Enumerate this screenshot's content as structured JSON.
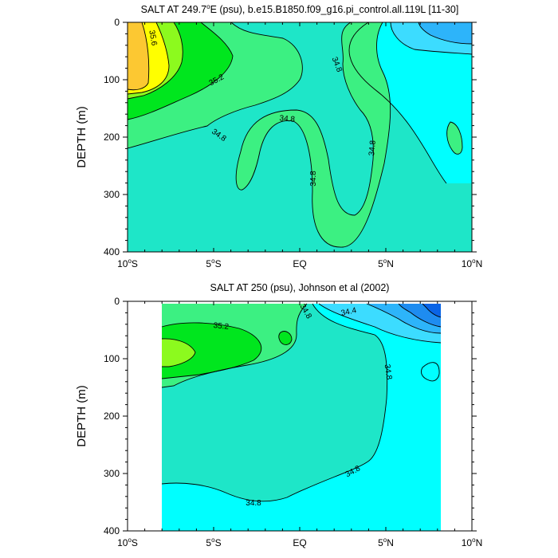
{
  "colors": {
    "c_lt_34_4": "#0a64e6",
    "c_34_4_34_5": "#1e8cf0",
    "c_34_5_34_6": "#2db4fa",
    "c_34_6_34_7": "#3cdcff",
    "c_34_7_34_8": "#00ffff",
    "c_34_8_35_0": "#1ee6c8",
    "c_35_0_35_2": "#3cf082",
    "c_35_2_35_4": "#00e61e",
    "c_35_4_35_6": "#8cfa1e",
    "c_gt_35_6": "#ffff00",
    "c_peak": "#fcc832",
    "line": "#000000",
    "frame": "#000000",
    "background": "#ffffff"
  },
  "chart_data": [
    {
      "type": "contour",
      "title": "SALT AT 249.7°E (psu), b.e15.B1850.f09_g16.pi_control.all.119L [11-30]",
      "title_parts": [
        "SALT AT 249.7",
        "o",
        "E (psu), b.e15.B1850.f09_g16.pi_control.all.119L [11-30]"
      ],
      "ylabel": "DEPTH (m)",
      "xlabel": "",
      "x_range": [
        -10,
        10
      ],
      "y_range": [
        0,
        400
      ],
      "y_reversed": true,
      "x_ticks": [
        {
          "value": -10,
          "num": "10",
          "sup": "o",
          "suf": "S"
        },
        {
          "value": -5,
          "num": "5",
          "sup": "o",
          "suf": "S"
        },
        {
          "value": 0,
          "num": "EQ",
          "sup": "",
          "suf": ""
        },
        {
          "value": 5,
          "num": "5",
          "sup": "o",
          "suf": "N"
        },
        {
          "value": 10,
          "num": "10",
          "sup": "o",
          "suf": "N"
        }
      ],
      "y_ticks": [
        0,
        100,
        200,
        300,
        400
      ],
      "contour_labels": [
        "35.6",
        "35.2",
        "34.8",
        "34.8",
        "34.8",
        "34.8",
        "34.8"
      ]
    },
    {
      "type": "contour",
      "title": "SALT AT 250 (psu), Johnson et al (2002)",
      "title_parts": [
        "SALT AT 250 (psu), Johnson et al (2002)",
        "",
        ""
      ],
      "ylabel": "DEPTH (m)",
      "xlabel": "",
      "x_range": [
        -10,
        10
      ],
      "y_range": [
        0,
        400
      ],
      "y_reversed": true,
      "data_x_range": [
        -8,
        8.2
      ],
      "x_ticks": [
        {
          "value": -10,
          "num": "10",
          "sup": "o",
          "suf": "S"
        },
        {
          "value": -5,
          "num": "5",
          "sup": "o",
          "suf": "S"
        },
        {
          "value": 0,
          "num": "EQ",
          "sup": "",
          "suf": ""
        },
        {
          "value": 5,
          "num": "5",
          "sup": "o",
          "suf": "N"
        },
        {
          "value": 10,
          "num": "10",
          "sup": "o",
          "suf": "N"
        }
      ],
      "y_ticks": [
        0,
        100,
        200,
        300,
        400
      ],
      "contour_labels": [
        "35.2",
        "34.8",
        "34.4",
        "34.8",
        "34.8",
        "34.8"
      ]
    }
  ]
}
